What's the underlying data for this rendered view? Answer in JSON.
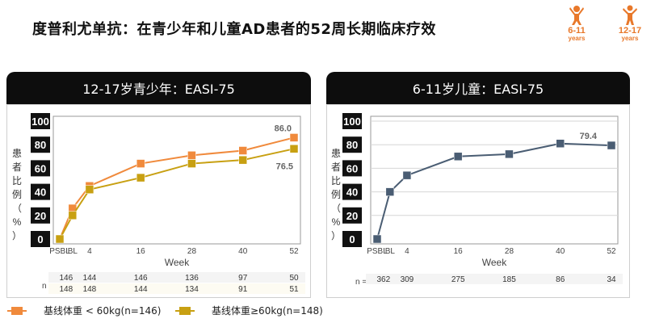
{
  "title": "度普利尤单抗：在青少年和儿童AD患者的52周长期临床疗效",
  "badges": [
    {
      "age": "6-11",
      "unit": "years"
    },
    {
      "age": "12-17",
      "unit": "years"
    }
  ],
  "colors": {
    "orange": "#f08a3c",
    "gold": "#c8a012",
    "blue": "#4a5d73",
    "badge": "#e8782a"
  },
  "chart_data": [
    {
      "type": "line",
      "title": "12-17岁青少年：EASI-75",
      "ylabel": "患者比例（%）",
      "xlabel": "Week",
      "x": [
        "PSBL",
        "BL",
        "4",
        "16",
        "28",
        "40",
        "52"
      ],
      "x_numeric": [
        -3,
        0,
        4,
        16,
        28,
        40,
        52
      ],
      "ylim": [
        0,
        100
      ],
      "yticks": [
        0,
        20,
        40,
        60,
        80,
        100
      ],
      "series": [
        {
          "name": "基线体重 < 60kg(n=146)",
          "color": "#f08a3c",
          "marker": "square",
          "values": [
            0,
            26,
            45,
            64,
            71,
            75,
            86.0
          ],
          "end_label": "86.0"
        },
        {
          "name": "基线体重≥60kg(n=148)",
          "color": "#c8a012",
          "marker": "square",
          "values": [
            0,
            20,
            42,
            52,
            64,
            67,
            76.5
          ],
          "end_label": "76.5"
        }
      ],
      "n_label": "n =",
      "n_rows": [
        [
          "146",
          "144",
          "146",
          "136",
          "97",
          "50"
        ],
        [
          "148",
          "148",
          "144",
          "134",
          "91",
          "51"
        ]
      ]
    },
    {
      "type": "line",
      "title": "6-11岁儿童：EASI-75",
      "ylabel": "患者比例（%）",
      "xlabel": "Week",
      "x": [
        "PSBL",
        "BL",
        "4",
        "16",
        "28",
        "40",
        "52"
      ],
      "x_numeric": [
        -3,
        0,
        4,
        16,
        28,
        40,
        52
      ],
      "ylim": [
        0,
        100
      ],
      "yticks": [
        0,
        20,
        40,
        60,
        80,
        100
      ],
      "series": [
        {
          "color": "#4a5d73",
          "marker": "square",
          "values": [
            0,
            40,
            54,
            70,
            72,
            81,
            79.4
          ],
          "end_label": "79.4"
        }
      ],
      "n_label": "n =",
      "n_rows": [
        [
          "362",
          "309",
          "275",
          "185",
          "86",
          "34"
        ]
      ]
    }
  ],
  "legend": [
    {
      "label": "基线体重 < 60kg(n=146)",
      "color": "#f08a3c"
    },
    {
      "label": "基线体重≥60kg(n=148)",
      "color": "#c8a012"
    }
  ]
}
